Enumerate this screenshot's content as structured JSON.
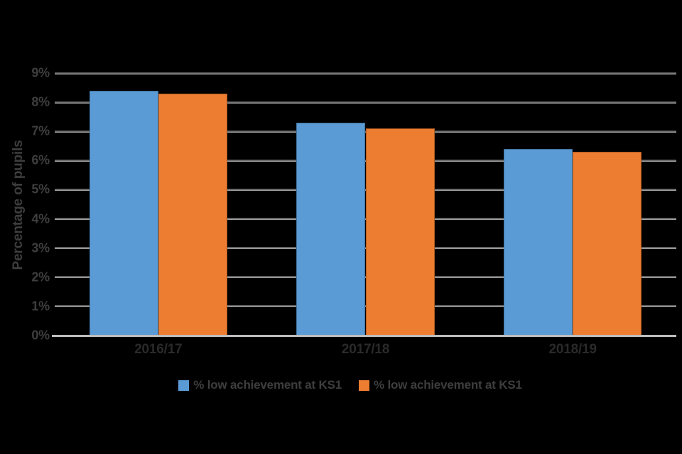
{
  "colors": {
    "background": "#000000",
    "axis_line": "#bdbdbd",
    "gridline": "#7f7f7f",
    "tick_label": "#3e3e3e",
    "category_label": "#2a2a2a",
    "axis_title": "#3e3e3e",
    "legend_label": "#3e3e3e",
    "series_blue": "#5B9BD5",
    "series_orange": "#ED7D31"
  },
  "chart_data": {
    "type": "bar",
    "title": "",
    "xlabel": "",
    "ylabel": "Percentage of pupils",
    "categories": [
      "2016/17",
      "2017/18",
      "2018/19"
    ],
    "series": [
      {
        "name": "% low achievement at KS1",
        "color": "#5B9BD5",
        "border": "#41719C",
        "values": [
          8.4,
          7.3,
          6.4
        ]
      },
      {
        "name": "% low achievement at KS1",
        "color": "#ED7D31",
        "border": "#AE5A21",
        "values": [
          8.3,
          7.1,
          6.3
        ]
      }
    ],
    "ylim": [
      0,
      9
    ],
    "ytick_step": 1,
    "yticks": [
      "0%",
      "1%",
      "2%",
      "3%",
      "4%",
      "5%",
      "6%",
      "7%",
      "8%",
      "9%"
    ],
    "grid": true,
    "legend_position": "bottom"
  }
}
